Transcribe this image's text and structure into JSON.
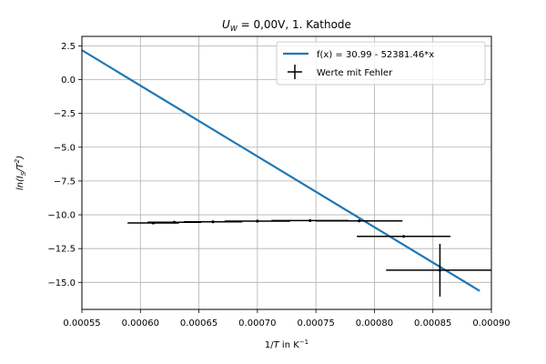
{
  "chart_data": {
    "type": "scatter",
    "title_prefix": "U",
    "title_sub": "W",
    "title_rest": " = 0,00V, 1. Kathode",
    "xlabel_prefix": "1/",
    "xlabel_var": "T",
    "xlabel_unit_base": " in K",
    "xlabel_unit_exp": "−1",
    "ylabel": "ln(I_S/T^2)",
    "xlim": [
      0.00055,
      0.0009
    ],
    "ylim": [
      -17,
      3.2
    ],
    "x_ticks": [
      "0.00055",
      "0.00060",
      "0.00065",
      "0.00070",
      "0.00075",
      "0.00080",
      "0.00085",
      "0.00090"
    ],
    "x_tick_values": [
      0.00055,
      0.0006,
      0.00065,
      0.0007,
      0.00075,
      0.0008,
      0.00085,
      0.0009
    ],
    "y_ticks": [
      "2.5",
      "0.0",
      "−2.5",
      "−5.0",
      "−7.5",
      "−10.0",
      "−12.5",
      "−15.0"
    ],
    "y_tick_values": [
      2.5,
      0.0,
      -2.5,
      -5.0,
      -7.5,
      -10.0,
      -12.5,
      -15.0
    ],
    "grid": true,
    "legend_position": "top-right",
    "fit": {
      "name": "f(x) = 30.99 - 52381.46*x",
      "intercept": 30.99,
      "slope": -52381.46,
      "x_range": [
        0.00055,
        0.00089
      ],
      "color": "#1f77b4"
    },
    "data_series": {
      "name": "Werte mit Fehler",
      "color": "#000000",
      "points": [
        {
          "x": 0.000611,
          "y": -10.6,
          "xerr": 2.2e-05,
          "yerr": 0.0
        },
        {
          "x": 0.000629,
          "y": -10.55,
          "xerr": 2.3e-05,
          "yerr": 0.0
        },
        {
          "x": 0.000662,
          "y": -10.52,
          "xerr": 2.5e-05,
          "yerr": 0.0
        },
        {
          "x": 0.0007,
          "y": -10.47,
          "xerr": 2.8e-05,
          "yerr": 0.0
        },
        {
          "x": 0.000745,
          "y": -10.43,
          "xerr": 3.3e-05,
          "yerr": 0.0
        },
        {
          "x": 0.000787,
          "y": -10.45,
          "xerr": 3.7e-05,
          "yerr": 0.0
        },
        {
          "x": 0.000825,
          "y": -11.6,
          "xerr": 4e-05,
          "yerr": 0.0
        },
        {
          "x": 0.000856,
          "y": -14.1,
          "xerr": 4.6e-05,
          "yerr": 1.95
        }
      ]
    }
  }
}
